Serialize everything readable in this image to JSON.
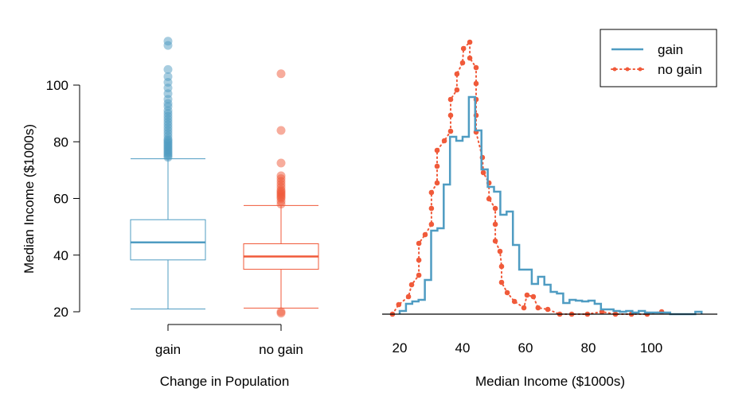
{
  "colors": {
    "gain": "#4f9cc2",
    "no_gain": "#f05a3a",
    "axis": "#000000"
  },
  "chart_data": [
    {
      "type": "box",
      "xlabel": "Change in Population",
      "ylabel": "Median Income ($1000s)",
      "ylim": [
        20,
        116
      ],
      "yticks": [
        "20",
        "40",
        "60",
        "80",
        "100"
      ],
      "ytick_values": [
        20,
        40,
        60,
        80,
        100
      ],
      "categories": [
        "gain",
        "no gain"
      ],
      "boxes": [
        {
          "name": "gain",
          "whisker_low": 21,
          "q1": 38.3,
          "median": 44.5,
          "q3": 52.5,
          "whisker_high": 74,
          "outliers": [
            74.5,
            75,
            75.5,
            76,
            76.5,
            77,
            77.5,
            78,
            78.5,
            79,
            79.5,
            80,
            80.5,
            81,
            82,
            83,
            84,
            85,
            86,
            87,
            88,
            89,
            90,
            91,
            92.5,
            93.5,
            95,
            97,
            99,
            101,
            103,
            105.5,
            114,
            115.5
          ]
        },
        {
          "name": "no gain",
          "whisker_low": 21.3,
          "q1": 35,
          "median": 39.5,
          "q3": 44,
          "whisker_high": 57.5,
          "outliers": [
            19.5,
            20,
            58,
            59,
            60,
            60.5,
            61,
            61.5,
            62,
            62.5,
            63,
            64,
            65,
            66,
            67,
            68,
            72.5,
            84,
            104
          ]
        }
      ]
    },
    {
      "type": "line",
      "xlabel": "Median Income ($1000s)",
      "xlim": [
        15.5,
        119
      ],
      "ylim": [
        0,
        350
      ],
      "xticks": [
        "20",
        "40",
        "60",
        "80",
        "100"
      ],
      "xtick_values": [
        20,
        40,
        60,
        80,
        100
      ],
      "legend": {
        "placement": "top-right",
        "entries": [
          "gain",
          "no gain"
        ]
      },
      "series": [
        {
          "name": "gain",
          "style": "step",
          "bin_width": 2,
          "bin_starts": [
            20,
            22,
            24,
            26,
            28,
            30,
            32,
            34,
            36,
            38,
            40,
            42,
            44,
            46,
            48,
            50,
            52,
            54,
            56,
            58,
            60,
            62,
            64,
            66,
            68,
            70,
            72,
            74,
            76,
            78,
            80,
            82,
            84,
            86,
            88,
            90,
            92,
            94,
            96,
            98,
            100,
            102,
            104,
            106,
            108,
            110,
            112,
            114
          ],
          "heights": [
            4,
            13,
            16,
            18,
            43,
            105,
            108,
            163,
            223,
            218,
            223,
            273,
            231,
            182,
            160,
            154,
            125,
            129,
            87,
            56,
            56,
            38,
            47,
            37,
            28,
            26,
            14,
            18,
            17,
            16,
            17,
            13,
            6,
            6,
            4,
            3,
            4,
            2,
            4,
            2,
            2,
            2,
            2,
            0,
            0,
            0,
            0,
            3
          ]
        },
        {
          "name": "no gain",
          "style": "dotted-points",
          "x": [
            17.7,
            19.7,
            22.8,
            23.8,
            26.1,
            26.1,
            26.1,
            28.1,
            30.1,
            30.1,
            30.1,
            31.9,
            31.9,
            31.9,
            34.2,
            36.2,
            36.2,
            36.2,
            38.2,
            38.2,
            40,
            40.3,
            42.3,
            42.3,
            44.3,
            44.3,
            44.3,
            44.3,
            44.3,
            46.3,
            46.6,
            48.4,
            48.4,
            50.4,
            50.4,
            50.4,
            51.9,
            52.4,
            52.4,
            54.2,
            56.5,
            59.5,
            60.5,
            62.5,
            64,
            67.1,
            70.9,
            74.7,
            79.7,
            84.3,
            88.6,
            93.7,
            98.7,
            103.3
          ],
          "y": [
            0,
            12,
            22,
            37,
            49,
            68,
            89,
            100,
            113,
            133,
            153,
            165,
            186,
            206,
            218,
            230,
            250,
            270,
            282,
            302,
            316,
            334,
            342,
            322,
            310,
            290,
            270,
            250,
            229,
            197,
            178,
            165,
            145,
            133,
            113,
            92,
            79,
            60,
            40,
            27,
            16,
            8,
            24,
            22,
            8,
            6,
            0,
            0,
            0,
            3,
            0,
            0,
            0,
            3
          ]
        }
      ]
    }
  ]
}
